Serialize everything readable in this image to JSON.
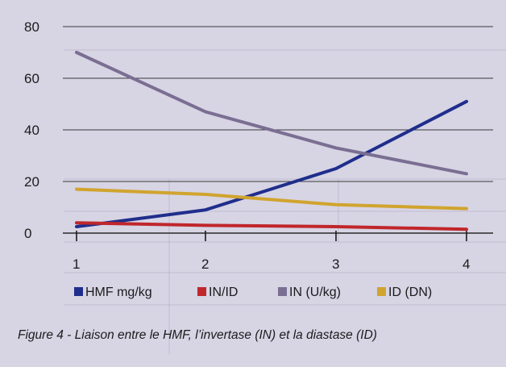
{
  "chart_data": {
    "type": "line",
    "title": "",
    "caption": "Figure 4 - Liaison entre le HMF, l’invertase (IN) et la diastase (ID)",
    "xlabel": "",
    "ylabel": "",
    "categories": [
      "1",
      "2",
      "3",
      "4"
    ],
    "x": [
      1,
      2,
      3,
      4
    ],
    "ylim": [
      0,
      80
    ],
    "yticks": [
      "0",
      "20",
      "40",
      "60",
      "80"
    ],
    "grid": true,
    "legend_position": "bottom",
    "series": [
      {
        "name": "HMF mg/kg",
        "color": "#1f2e8c",
        "values": [
          2.5,
          9,
          25,
          51
        ]
      },
      {
        "name": "IN/ID",
        "color": "#c0262b",
        "values": [
          4,
          3,
          2.5,
          1.5
        ]
      },
      {
        "name": "IN (U/kg)",
        "color": "#7a6e92",
        "values": [
          70,
          47,
          33,
          23
        ]
      },
      {
        "name": "ID (DN)",
        "color": "#d0a42e",
        "values": [
          17,
          15,
          11,
          9.5
        ]
      }
    ]
  }
}
